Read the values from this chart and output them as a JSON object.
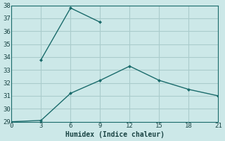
{
  "xlabel": "Humidex (Indice chaleur)",
  "xlim": [
    0,
    21
  ],
  "ylim": [
    29,
    38
  ],
  "xticks": [
    0,
    3,
    6,
    9,
    12,
    15,
    18,
    21
  ],
  "yticks": [
    29,
    30,
    31,
    32,
    33,
    34,
    35,
    36,
    37,
    38
  ],
  "background_color": "#cce8e8",
  "grid_color": "#aacccc",
  "line_color": "#1a6b6b",
  "line1_x": [
    0,
    3,
    6,
    9,
    12,
    15,
    18,
    21
  ],
  "line1_y": [
    29.0,
    29.1,
    31.2,
    32.2,
    33.3,
    32.2,
    31.5,
    31.0
  ],
  "line2_x": [
    3,
    6,
    9
  ],
  "line2_y": [
    33.8,
    37.8,
    36.7
  ],
  "font_family": "monospace"
}
